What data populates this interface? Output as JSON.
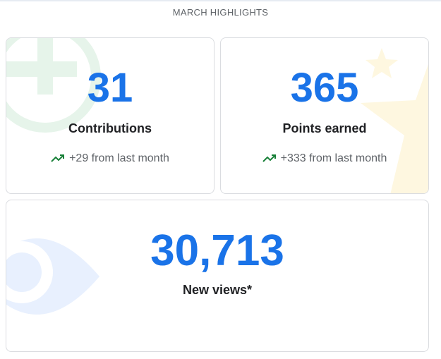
{
  "header": {
    "title": "MARCH HIGHLIGHTS"
  },
  "cards": [
    {
      "value": "31",
      "label": "Contributions",
      "trend": "+29 from last month",
      "trend_icon": "trending-up-icon",
      "background_icon": "add-circle-icon"
    },
    {
      "value": "365",
      "label": "Points earned",
      "trend": "+333 from last month",
      "trend_icon": "trending-up-icon",
      "background_icon": "star-icon"
    },
    {
      "value": "30,713",
      "label": "New views*",
      "background_icon": "eye-icon"
    }
  ],
  "colors": {
    "accent": "#1a73e8",
    "trend_up": "#188038",
    "plus_bg": "#e6f4ea",
    "star_bg": "#fef7e0",
    "eye_bg": "#e8f0fe"
  }
}
